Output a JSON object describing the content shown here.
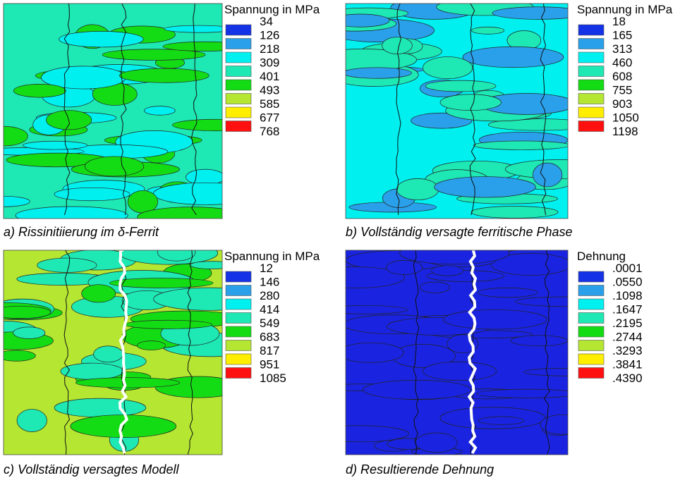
{
  "panels": [
    {
      "caption": "a) Rissinitiierung im δ-Ferrit",
      "legend_title": "Spannung in MPa",
      "levels": [
        "34",
        "126",
        "218",
        "309",
        "401",
        "493",
        "585",
        "677",
        "768"
      ]
    },
    {
      "caption": "b) Vollständig versagte ferritische Phase",
      "legend_title": "Spannung in MPa",
      "levels": [
        "18",
        "165",
        "313",
        "460",
        "608",
        "755",
        "903",
        "1050",
        "1198"
      ]
    },
    {
      "caption": "c) Vollständig versagtes Modell",
      "legend_title": "Spannung in MPa",
      "levels": [
        "12",
        "146",
        "280",
        "414",
        "549",
        "683",
        "817",
        "951",
        "1085"
      ]
    },
    {
      "caption": "d) Resultierende Dehnung",
      "legend_title": "Dehnung",
      "levels": [
        ".0001",
        ".0550",
        ".1098",
        ".1647",
        ".2195",
        ".2744",
        ".3293",
        ".3841",
        ".4390"
      ]
    }
  ],
  "legend_colors": [
    "#1432e6",
    "#2aa0ea",
    "#00f0f0",
    "#1ee8b4",
    "#14dc14",
    "#b4e632",
    "#ffee00",
    "#ff1010"
  ]
}
